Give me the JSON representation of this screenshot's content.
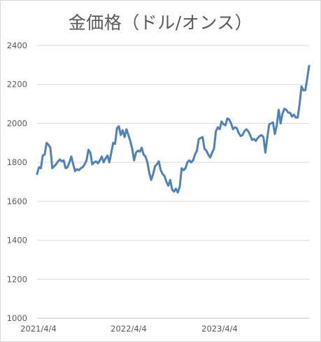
{
  "chart_data": {
    "type": "line",
    "title": "金価格（ドル/オンス）",
    "xlabel": "",
    "ylabel": "",
    "ylim": [
      1000,
      2400
    ],
    "yticks": [
      1000,
      1200,
      1400,
      1600,
      1800,
      2000,
      2200,
      2400
    ],
    "xticks": [
      "2021/4/4",
      "2022/4/4",
      "2023/4/4"
    ],
    "grid": true,
    "legend": "none",
    "line_color": "#4f81bd",
    "series": [
      {
        "values": [
          1740,
          1775,
          1770,
          1835,
          1840,
          1900,
          1890,
          1875,
          1770,
          1780,
          1790,
          1805,
          1815,
          1805,
          1810,
          1770,
          1775,
          1800,
          1830,
          1790,
          1755,
          1765,
          1760,
          1770,
          1775,
          1790,
          1810,
          1865,
          1850,
          1790,
          1800,
          1805,
          1795,
          1810,
          1830,
          1800,
          1820,
          1835,
          1800,
          1850,
          1900,
          1895,
          1975,
          1985,
          1940,
          1965,
          1930,
          1970,
          1940,
          1910,
          1870,
          1810,
          1850,
          1860,
          1855,
          1875,
          1840,
          1830,
          1800,
          1745,
          1710,
          1740,
          1780,
          1790,
          1805,
          1760,
          1740,
          1730,
          1700,
          1680,
          1710,
          1660,
          1650,
          1665,
          1645,
          1675,
          1770,
          1760,
          1770,
          1800,
          1810,
          1800,
          1810,
          1840,
          1860,
          1920,
          1925,
          1930,
          1870,
          1860,
          1840,
          1825,
          1850,
          1870,
          1960,
          1980,
          1970,
          2010,
          1995,
          1990,
          2025,
          2020,
          2000,
          1970,
          1980,
          1975,
          1950,
          1935,
          1940,
          1960,
          1970,
          1960,
          1940,
          1915,
          1920,
          1910,
          1925,
          1935,
          1940,
          1930,
          1850,
          1925,
          1995,
          2000,
          2005,
          1945,
          1990,
          2070,
          2000,
          2050,
          2075,
          2070,
          2055,
          2055,
          2035,
          2045,
          2030,
          2030,
          2100,
          2190,
          2170,
          2170,
          2230,
          2295
        ]
      }
    ]
  }
}
